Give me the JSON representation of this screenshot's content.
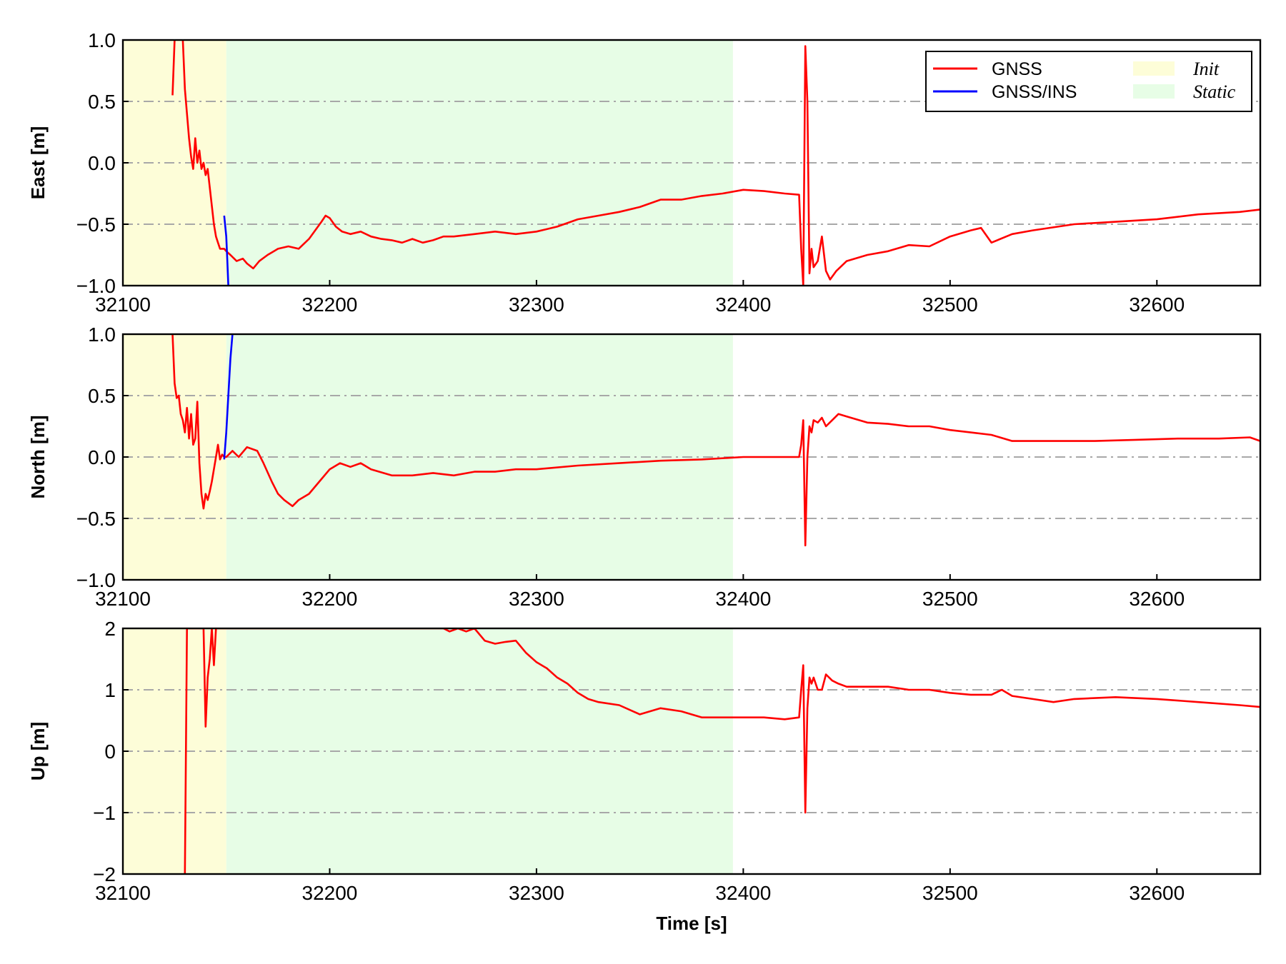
{
  "chart_data": {
    "type": "line",
    "xlabel": "Time [s]",
    "xlim": [
      32100,
      32650
    ],
    "xticks": [
      32100,
      32200,
      32300,
      32400,
      32500,
      32600
    ],
    "grid": "horizontal dash-dot",
    "legend_placement": "top-right",
    "regions": [
      {
        "name": "Init",
        "x_start": 32100,
        "x_end": 32150,
        "color": "#fdfdd8"
      },
      {
        "name": "Static",
        "x_start": 32150,
        "x_end": 32395,
        "color": "#e7fde6"
      }
    ],
    "series_style": [
      {
        "name": "GNSS",
        "color": "#ff0000"
      },
      {
        "name": "GNSS/INS",
        "color": "#0000ff"
      }
    ],
    "panels": [
      {
        "ylabel": "East [m]",
        "ylim": [
          -1.0,
          1.0
        ],
        "yticks": [
          "1.0",
          "0.5",
          "0.0",
          "−0.5",
          "−1.0"
        ],
        "ytick_values": [
          1.0,
          0.5,
          0.0,
          -0.5,
          -1.0
        ],
        "series": [
          {
            "name": "GNSS",
            "x": [
              32124,
              32125,
              32126,
              32127,
              32128,
              32129,
              32130,
              32131,
              32132,
              32133,
              32134,
              32135,
              32136,
              32137,
              32138,
              32139,
              32140,
              32141,
              32142,
              32143,
              32144,
              32145,
              32146,
              32147,
              32148,
              32149,
              32150,
              32152,
              32155,
              32158,
              32160,
              32163,
              32166,
              32170,
              32175,
              32180,
              32185,
              32190,
              32193,
              32196,
              32198,
              32200,
              32203,
              32206,
              32210,
              32215,
              32220,
              32225,
              32230,
              32235,
              32240,
              32245,
              32250,
              32255,
              32260,
              32270,
              32280,
              32290,
              32300,
              32310,
              32320,
              32330,
              32340,
              32350,
              32360,
              32370,
              32380,
              32390,
              32400,
              32410,
              32420,
              32427,
              32428,
              32429,
              32430,
              32431,
              32432,
              32433,
              32434,
              32436,
              32438,
              32440,
              32442,
              32445,
              32450,
              32460,
              32470,
              32480,
              32490,
              32500,
              32510,
              32515,
              32520,
              32530,
              32540,
              32560,
              32580,
              32600,
              32620,
              32640,
              32650
            ],
            "y": [
              0.55,
              1.0,
              1.05,
              1.1,
              1.05,
              1.0,
              0.6,
              0.4,
              0.2,
              0.05,
              -0.05,
              0.2,
              0.0,
              0.1,
              -0.05,
              0.0,
              -0.1,
              -0.05,
              -0.2,
              -0.35,
              -0.5,
              -0.6,
              -0.65,
              -0.7,
              -0.7,
              -0.7,
              -0.72,
              -0.75,
              -0.8,
              -0.78,
              -0.82,
              -0.86,
              -0.8,
              -0.75,
              -0.7,
              -0.68,
              -0.7,
              -0.62,
              -0.55,
              -0.48,
              -0.43,
              -0.45,
              -0.52,
              -0.56,
              -0.58,
              -0.56,
              -0.6,
              -0.62,
              -0.63,
              -0.65,
              -0.62,
              -0.65,
              -0.63,
              -0.6,
              -0.6,
              -0.58,
              -0.56,
              -0.58,
              -0.56,
              -0.52,
              -0.46,
              -0.43,
              -0.4,
              -0.36,
              -0.3,
              -0.3,
              -0.27,
              -0.25,
              -0.22,
              -0.23,
              -0.25,
              -0.26,
              -0.7,
              -1.0,
              0.95,
              0.5,
              -0.9,
              -0.7,
              -0.85,
              -0.8,
              -0.6,
              -0.88,
              -0.95,
              -0.88,
              -0.8,
              -0.75,
              -0.72,
              -0.67,
              -0.68,
              -0.6,
              -0.55,
              -0.53,
              -0.65,
              -0.58,
              -0.55,
              -0.5,
              -0.48,
              -0.46,
              -0.42,
              -0.4,
              -0.38
            ]
          },
          {
            "name": "GNSS/INS",
            "x": [
              32149,
              32150,
              32150.5,
              32151
            ],
            "y": [
              -0.43,
              -0.6,
              -0.8,
              -1.0
            ]
          }
        ]
      },
      {
        "ylabel": "North [m]",
        "ylim": [
          -1.0,
          1.0
        ],
        "yticks": [
          "1.0",
          "0.5",
          "0.0",
          "−0.5",
          "−1.0"
        ],
        "ytick_values": [
          1.0,
          0.5,
          0.0,
          -0.5,
          -1.0
        ],
        "series": [
          {
            "name": "GNSS",
            "x": [
              32124,
              32125,
              32126,
              32127,
              32128,
              32129,
              32130,
              32131,
              32132,
              32133,
              32134,
              32135,
              32136,
              32137,
              32138,
              32139,
              32140,
              32141,
              32142,
              32143,
              32144,
              32145,
              32146,
              32147,
              32148,
              32149,
              32150,
              32153,
              32156,
              32160,
              32165,
              32168,
              32172,
              32175,
              32178,
              32182,
              32185,
              32190,
              32195,
              32200,
              32205,
              32210,
              32215,
              32220,
              32230,
              32240,
              32250,
              32260,
              32270,
              32280,
              32290,
              32300,
              32320,
              32340,
              32360,
              32380,
              32400,
              32410,
              32420,
              32427,
              32428,
              32429,
              32430,
              32431,
              32432,
              32433,
              32434,
              32436,
              32438,
              32440,
              32443,
              32446,
              32450,
              32460,
              32470,
              32480,
              32490,
              32500,
              32510,
              32520,
              32530,
              32550,
              32570,
              32590,
              32610,
              32630,
              32645,
              32650
            ],
            "y": [
              1.0,
              0.6,
              0.48,
              0.5,
              0.35,
              0.3,
              0.2,
              0.4,
              0.15,
              0.35,
              0.1,
              0.15,
              0.45,
              -0.05,
              -0.3,
              -0.42,
              -0.3,
              -0.35,
              -0.28,
              -0.2,
              -0.1,
              0.0,
              0.1,
              -0.02,
              0.02,
              0.0,
              0.0,
              0.05,
              0.0,
              0.08,
              0.05,
              -0.05,
              -0.2,
              -0.3,
              -0.35,
              -0.4,
              -0.35,
              -0.3,
              -0.2,
              -0.1,
              -0.05,
              -0.08,
              -0.05,
              -0.1,
              -0.15,
              -0.15,
              -0.13,
              -0.15,
              -0.12,
              -0.12,
              -0.1,
              -0.1,
              -0.07,
              -0.05,
              -0.03,
              -0.02,
              0.0,
              0.0,
              0.0,
              0.0,
              0.1,
              0.3,
              -0.72,
              0.0,
              0.25,
              0.2,
              0.3,
              0.28,
              0.32,
              0.25,
              0.3,
              0.35,
              0.33,
              0.28,
              0.27,
              0.25,
              0.25,
              0.22,
              0.2,
              0.18,
              0.13,
              0.13,
              0.13,
              0.14,
              0.15,
              0.15,
              0.16,
              0.13
            ]
          },
          {
            "name": "GNSS/INS",
            "x": [
              32149,
              32150,
              32151,
              32152,
              32153
            ],
            "y": [
              -0.02,
              0.2,
              0.5,
              0.8,
              1.0
            ]
          }
        ]
      },
      {
        "ylabel": "Up [m]",
        "ylim": [
          -2,
          2
        ],
        "yticks": [
          "2",
          "1",
          "0",
          "−1",
          "−2"
        ],
        "ytick_values": [
          2,
          1,
          0,
          -1,
          -2
        ],
        "series": [
          {
            "name": "GNSS",
            "x": [
              32130,
              32131,
              32132,
              32133,
              32134,
              32135,
              32136,
              32137,
              32138,
              32139,
              32140,
              32141,
              32142,
              32143,
              32144,
              32145,
              32146,
              32147,
              32150,
              32200,
              32255,
              32258,
              32262,
              32266,
              32270,
              32275,
              32280,
              32285,
              32290,
              32295,
              32300,
              32305,
              32310,
              32315,
              32320,
              32325,
              32330,
              32340,
              32350,
              32360,
              32370,
              32380,
              32390,
              32400,
              32410,
              32420,
              32427,
              32428,
              32429,
              32430,
              32431,
              32432,
              32433,
              32434,
              32436,
              32438,
              32440,
              32443,
              32446,
              32450,
              32460,
              32470,
              32480,
              32490,
              32500,
              32510,
              32520,
              32525,
              32530,
              32540,
              32550,
              32560,
              32580,
              32600,
              32620,
              32640,
              32650
            ],
            "y": [
              -2.0,
              2.0,
              2.0,
              2.0,
              2.0,
              2.0,
              2.0,
              2.0,
              2.0,
              2.0,
              0.4,
              1.2,
              1.5,
              2.0,
              1.4,
              2.0,
              2.0,
              2.0,
              2.0,
              2.0,
              2.0,
              1.95,
              2.0,
              1.95,
              2.0,
              1.8,
              1.75,
              1.78,
              1.8,
              1.6,
              1.45,
              1.35,
              1.2,
              1.1,
              0.95,
              0.85,
              0.8,
              0.75,
              0.6,
              0.7,
              0.65,
              0.55,
              0.55,
              0.55,
              0.55,
              0.52,
              0.55,
              1.0,
              1.4,
              -1.0,
              0.7,
              1.2,
              1.1,
              1.2,
              1.0,
              1.0,
              1.25,
              1.15,
              1.1,
              1.05,
              1.05,
              1.05,
              1.0,
              1.0,
              0.95,
              0.92,
              0.92,
              1.0,
              0.9,
              0.85,
              0.8,
              0.85,
              0.88,
              0.85,
              0.8,
              0.75,
              0.72
            ]
          }
        ]
      }
    ]
  }
}
